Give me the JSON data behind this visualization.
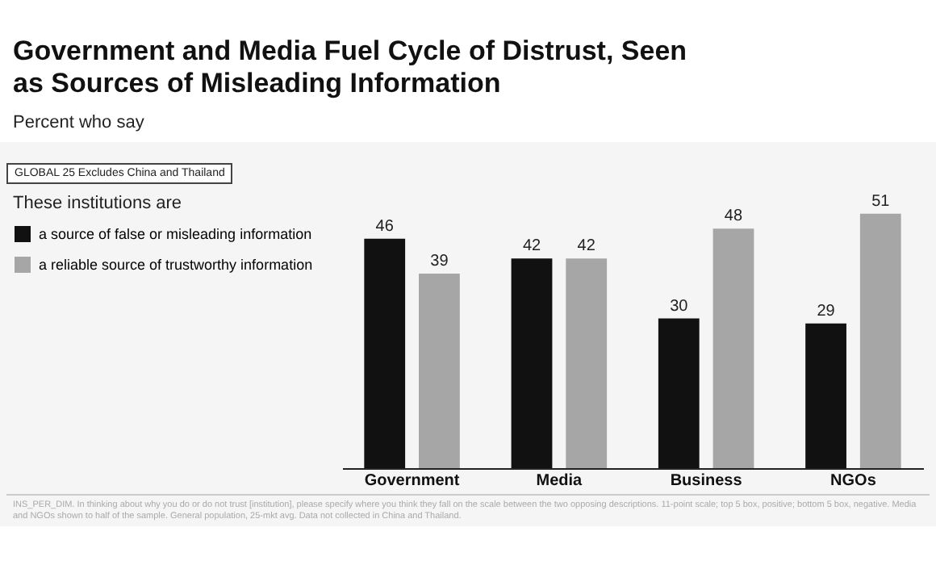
{
  "chart_data": {
    "type": "bar",
    "title": "Government and Media Fuel Cycle of Distrust, Seen as Sources of Misleading Information",
    "subtitle": "Percent who say",
    "legend_title": "These institutions are",
    "categories": [
      "Government",
      "Media",
      "Business",
      "NGOs"
    ],
    "series": [
      {
        "name": "a source of false or misleading information",
        "color": "#111111",
        "values": [
          46,
          42,
          30,
          29
        ]
      },
      {
        "name": "a reliable source of trustworthy information",
        "color": "#a6a6a6",
        "values": [
          39,
          42,
          48,
          51
        ]
      }
    ],
    "data_labels": true,
    "grid": false,
    "legend": "left",
    "annotations": [
      "GLOBAL 25 Excludes China and Thailand",
      "INS_PER_DIM. In thinking about why you do or do not trust [institution], please specify where you think they fall on the scale between the two opposing descriptions. 11-point scale; top 5 box, positive; bottom 5 box, negative. Media and NGOs shown to half of the sample. General population, 25-mkt avg. Data not collected in China and Thailand."
    ]
  }
}
